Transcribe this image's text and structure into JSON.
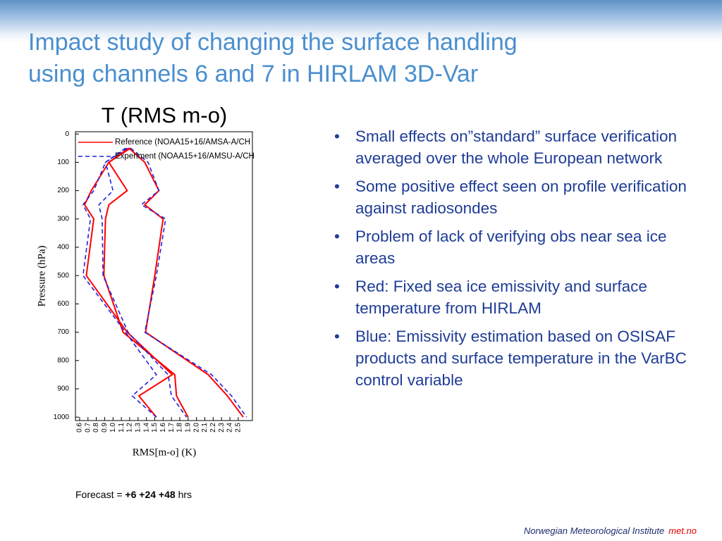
{
  "slide": {
    "title": [
      "Impact study of changing the surface handling",
      "using channels 6 and 7 in HIRLAM 3D-Var"
    ],
    "bullets": [
      "Small effects on”standard”  surface verification averaged over the whole European network",
      "Some positive effect seen on profile verification against radiosondes",
      "Problem of lack of verifying obs near sea ice areas",
      "Red: Fixed sea ice emissivity and surface temperature from HIRLAM",
      "Blue:  Emissivity estimation based on OSISAF products and surface temperature in the VarBC control variable"
    ],
    "footnote": {
      "prefix": "Forecast =",
      "bold": "+6 +24 +48",
      "suffix": "hrs"
    },
    "footer": {
      "institute": "Norwegian Meteorological Institute",
      "site": "met.no"
    }
  },
  "chart_data": {
    "type": "line",
    "title": "T (RMS m-o)",
    "xlabel": "RMS[m-o] (K)",
    "ylabel": "Pressure (hPa)",
    "xlim": [
      0.55,
      2.67
    ],
    "ylim": [
      -8,
      1012
    ],
    "y_inverted": true,
    "xticks": [
      0.6,
      0.7,
      0.8,
      0.9,
      {
        "value": 1,
        "label": "1.0"
      },
      1.1,
      1.2,
      1.3,
      1.4,
      1.5,
      1.6,
      1.7,
      1.8,
      1.9,
      {
        "value": 2,
        "label": "2.0"
      },
      2.1,
      2.2,
      2.3,
      2.4,
      2.5
    ],
    "yticks": [
      0,
      100,
      200,
      300,
      400,
      500,
      600,
      700,
      800,
      900,
      1000
    ],
    "pressure": [
      50,
      100,
      200,
      250,
      300,
      500,
      700,
      850,
      925,
      1000
    ],
    "series": [
      {
        "name": "Reference (NOAA15+16/AMSA-A/CH",
        "color": "#ff0000",
        "dashed": false,
        "lines": [
          [
            1.19,
            0.95,
            0.74,
            0.66,
            0.77,
            0.68,
            1.17,
            1.71,
            1.31,
            1.52
          ],
          [
            1.21,
            0.95,
            1.17,
            0.95,
            0.91,
            0.89,
            1.12,
            1.74,
            1.76,
            1.9
          ],
          [
            1.19,
            1.38,
            1.55,
            1.38,
            1.6,
            1.5,
            1.39,
            2.14,
            2.37,
            2.56
          ]
        ]
      },
      {
        "name": "Experiment (NOAA15+16/AMSU-A/CH",
        "color": "#2222dd",
        "dashed": true,
        "lines": [
          [
            1.17,
            0.91,
            0.77,
            0.64,
            0.73,
            0.64,
            1.15,
            1.52,
            1.23,
            1.52
          ],
          [
            1.15,
            0.91,
            1.0,
            0.83,
            0.87,
            0.88,
            1.18,
            1.66,
            1.7,
            1.88
          ],
          [
            1.21,
            1.42,
            1.55,
            1.34,
            1.63,
            1.52,
            1.38,
            2.18,
            2.42,
            2.6
          ]
        ]
      }
    ],
    "legend": "top"
  }
}
